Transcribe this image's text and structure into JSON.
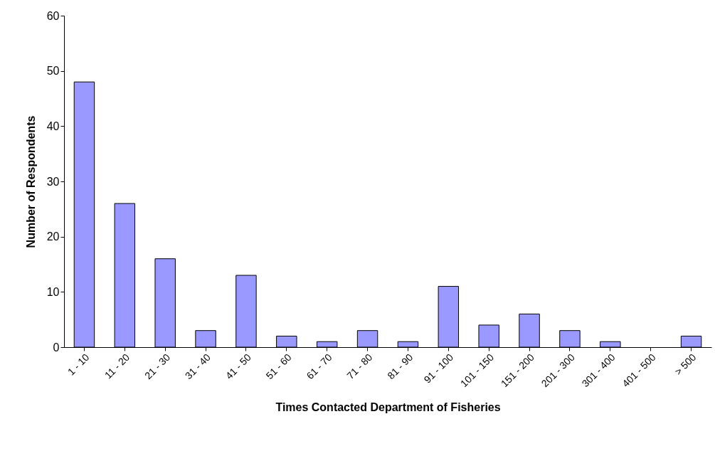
{
  "chart_data": {
    "type": "bar",
    "xlabel": "Times Contacted Department of Fisheries",
    "ylabel": "Number of Respondents",
    "categories": [
      "1 - 10",
      "11 - 20",
      "21 - 30",
      "31 - 40",
      "41 - 50",
      "51 - 60",
      "61 - 70",
      "71 - 80",
      "81 - 90",
      "91 - 100",
      "101 - 150",
      "151 - 200",
      "201 - 300",
      "301 - 400",
      "401 - 500",
      "> 500"
    ],
    "values": [
      48,
      26,
      16,
      3,
      13,
      2,
      1,
      3,
      1,
      11,
      4,
      6,
      3,
      1,
      0,
      2
    ],
    "color": "#9999ff",
    "ylim": [
      0,
      60
    ],
    "yticks": [
      0,
      10,
      20,
      30,
      40,
      50,
      60
    ],
    "grid": false
  }
}
